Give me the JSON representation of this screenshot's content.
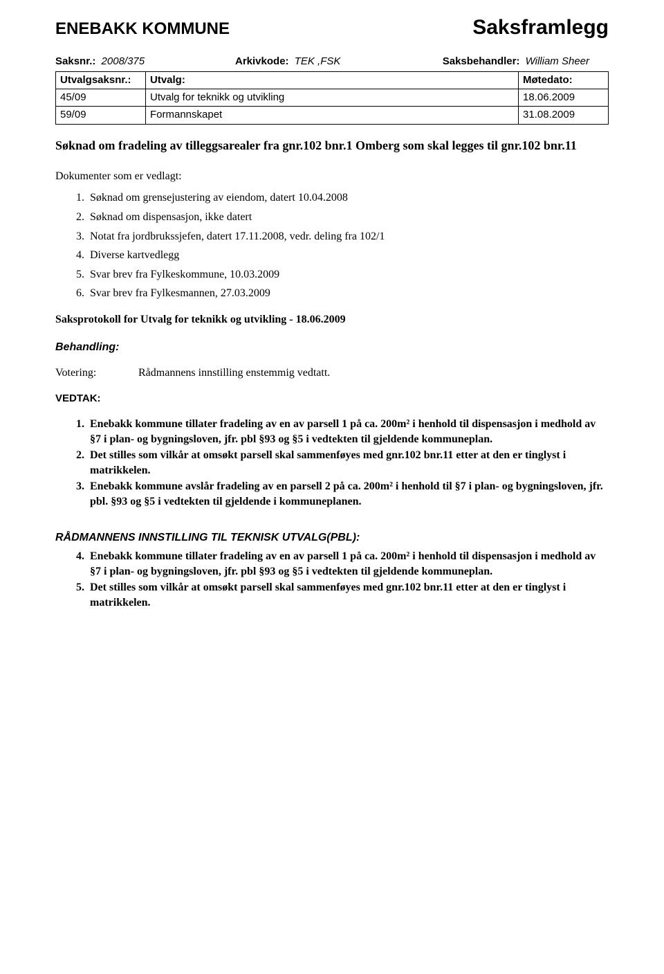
{
  "header": {
    "left": "ENEBAKK KOMMUNE",
    "right": "Saksframlegg"
  },
  "meta": {
    "saksnr_label": "Saksnr.:",
    "saksnr_value": "2008/375",
    "arkivkode_label": "Arkivkode:",
    "arkivkode_value": "TEK ,FSK",
    "saksbehandler_label": "Saksbehandler:",
    "saksbehandler_value": "William Sheer"
  },
  "utvalg_table": {
    "headers": [
      "Utvalgsaksnr.:",
      "Utvalg:",
      "Møtedato:"
    ],
    "rows": [
      [
        "45/09",
        "Utvalg for teknikk og utvikling",
        "18.06.2009"
      ],
      [
        "59/09",
        "Formannskapet",
        "31.08.2009"
      ]
    ]
  },
  "title": "Søknad om fradeling av tilleggsarealer fra gnr.102 bnr.1 Omberg som skal legges til gnr.102 bnr.11",
  "vedlagt_label": "Dokumenter som er vedlagt:",
  "vedlagt_items": [
    "Søknad om grensejustering av eiendom, datert 10.04.2008",
    "Søknad om dispensasjon, ikke datert",
    "Notat fra jordbrukssjefen, datert 17.11.2008, vedr. deling fra 102/1",
    "Diverse kartvedlegg",
    "Svar brev fra Fylkeskommune, 10.03.2009",
    "Svar brev fra Fylkesmannen, 27.03.2009"
  ],
  "protokoll_title": "Saksprotokoll for  Utvalg for teknikk og utvikling - 18.06.2009",
  "behandling_label": "Behandling:",
  "votering_label": "Votering:",
  "votering_text": "Rådmannens innstilling enstemmig vedtatt.",
  "vedtak_label": "VEDTAK:",
  "vedtak_items": [
    "Enebakk kommune tillater fradeling av en av parsell 1 på ca. 200m² i henhold til dispensasjon i medhold av §7 i plan- og bygningsloven, jfr. pbl §93 og §5 i vedtekten til gjeldende kommuneplan.",
    "Det stilles som vilkår at omsøkt parsell skal sammenføyes med gnr.102 bnr.11 etter at den er tinglyst i matrikkelen.",
    "Enebakk kommune avslår fradeling av en parsell 2 på ca. 200m² i henhold til §7  i plan- og bygningsloven, jfr. pbl. §93 og §5 i vedtekten til gjeldende i kommuneplanen."
  ],
  "innstilling_label": "RÅDMANNENS INNSTILLING TIL TEKNISK UTVALG(PBL):",
  "innstilling_start": 4,
  "innstilling_items": [
    "Enebakk kommune tillater fradeling av en av parsell 1 på ca. 200m² i henhold til dispensasjon i medhold av §7 i plan- og bygningsloven, jfr. pbl §93 og §5 i vedtekten til gjeldende kommuneplan.",
    "Det stilles som vilkår at omsøkt parsell skal sammenføyes med gnr.102 bnr.11 etter at den er tinglyst i matrikkelen."
  ]
}
